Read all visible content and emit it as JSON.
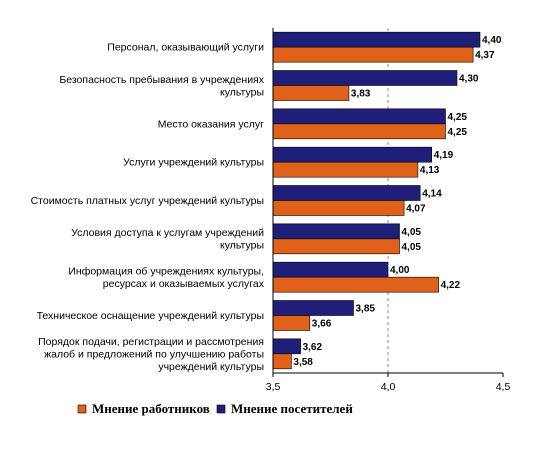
{
  "chart_data": {
    "type": "bar",
    "orientation": "horizontal",
    "categories": [
      [
        "Персонал, оказывающий услуги"
      ],
      [
        "Безопасность пребывания в учреждениях",
        "культуры"
      ],
      [
        "Место оказания услуг"
      ],
      [
        "Услуги учреждений культуры"
      ],
      [
        "Стоимость платных услуг учреждений культуры"
      ],
      [
        "Условия доступа к услугам учреждений",
        "культуры"
      ],
      [
        "Информация об учреждениях культуры,",
        "ресурсах и оказываемых услугах"
      ],
      [
        "Техническое оснащение учреждений культуры"
      ],
      [
        "Порядок подачи, регистрации и рассмотрения",
        "жалоб и предложений по улучшению работы",
        "учреждений культуры"
      ]
    ],
    "series": [
      {
        "name": "Мнение посетителей",
        "color": "#1F1F7A",
        "values": [
          4.4,
          4.3,
          4.25,
          4.19,
          4.14,
          4.05,
          4.0,
          3.85,
          3.62
        ],
        "labels": [
          "4,40",
          "4,30",
          "4,25",
          "4,19",
          "4,14",
          "4,05",
          "4,00",
          "3,85",
          "3,62"
        ]
      },
      {
        "name": "Мнение работников",
        "color": "#E0621A",
        "values": [
          4.37,
          3.83,
          4.25,
          4.13,
          4.07,
          4.05,
          4.22,
          3.66,
          3.58
        ],
        "labels": [
          "4,37",
          "3,83",
          "4,25",
          "4,13",
          "4,07",
          "4,05",
          "4,22",
          "3,66",
          "3,58"
        ]
      }
    ],
    "xlim": [
      3.5,
      4.5
    ],
    "ticks": [
      3.5,
      4.0,
      4.5
    ],
    "tick_labels": [
      "3,5",
      "4,0",
      "4,5"
    ],
    "gridlines": [
      4.0
    ],
    "grid": "dashed vertical at 4,0",
    "legend": {
      "position": "bottom",
      "order": [
        "Мнение работников",
        "Мнение посетителей"
      ]
    }
  }
}
